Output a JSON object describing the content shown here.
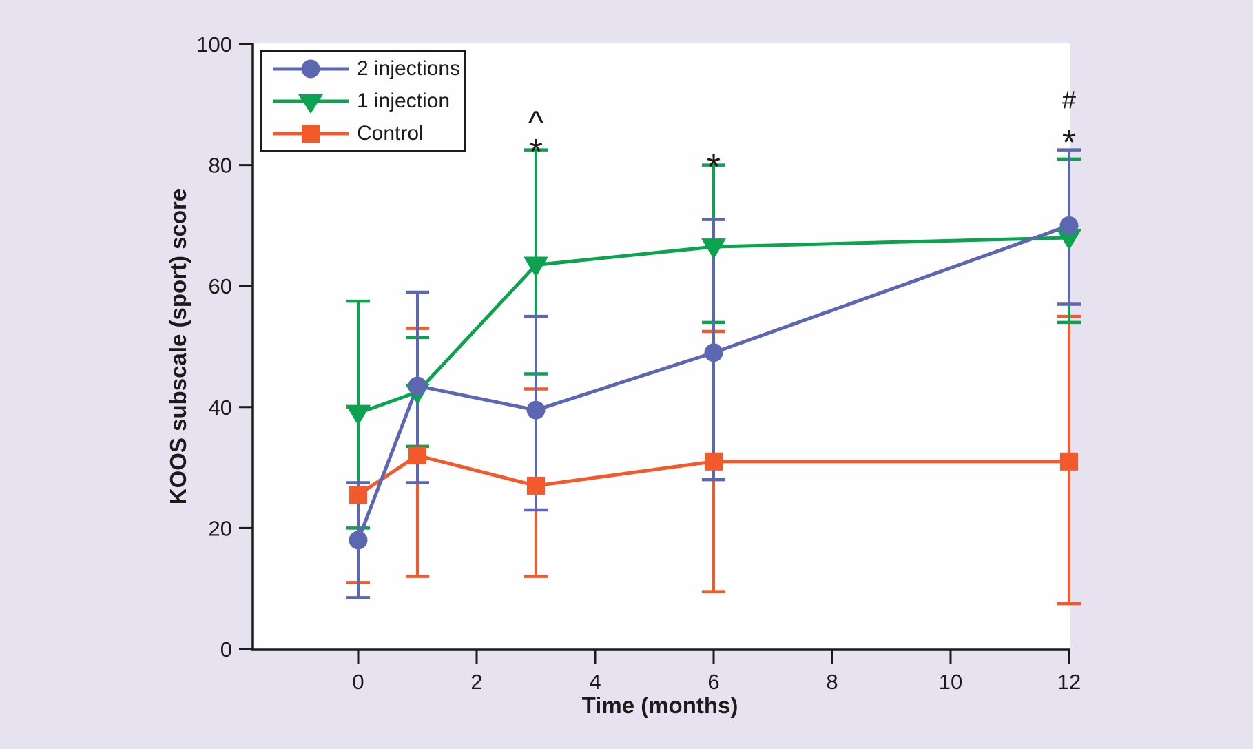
{
  "figure": {
    "background_color": "#e6e2ef",
    "plot_background": "#fffeff",
    "axis_color": "#1c1a1b",
    "text_color": "#1c1a1b"
  },
  "y_axis": {
    "title": "KOOS subscale (sport) score",
    "ticks": [
      0,
      20,
      40,
      60,
      80,
      100
    ],
    "min": 0,
    "max": 100
  },
  "x_axis": {
    "title": "Time (months)",
    "ticks": [
      0,
      2,
      4,
      6,
      8,
      10,
      12
    ],
    "min_months": -1.8,
    "max_months": 12
  },
  "legend": {
    "items": [
      {
        "label": "2 injections",
        "color": "#5b67b1",
        "marker": "circle"
      },
      {
        "label": "1 injection",
        "color": "#0ca24f",
        "marker": "triangle-down"
      },
      {
        "label": "Control",
        "color": "#f2592b",
        "marker": "square"
      }
    ]
  },
  "chart_data": {
    "type": "line",
    "title": "",
    "xlabel": "Time (months)",
    "ylabel": "KOOS subscale (sport) score",
    "ylim": [
      0,
      100
    ],
    "x_months": [
      0,
      1,
      3,
      6,
      12
    ],
    "series": [
      {
        "name": "2 injections",
        "color": "#5b67b1",
        "marker": "circle",
        "values": [
          18,
          43.5,
          39.5,
          49,
          70
        ],
        "err_upper": [
          27.5,
          59,
          55,
          71,
          82.5
        ],
        "err_lower": [
          8.5,
          27.5,
          23,
          28,
          57
        ]
      },
      {
        "name": "1 injection",
        "color": "#0ca24f",
        "marker": "triangle-down",
        "values": [
          39,
          42.5,
          63.5,
          66.5,
          68
        ],
        "err_upper": [
          57.5,
          51.5,
          82.5,
          80,
          81
        ],
        "err_lower": [
          20,
          33.5,
          45.5,
          54,
          54
        ]
      },
      {
        "name": "Control",
        "color": "#f2592b",
        "marker": "square",
        "values": [
          25.5,
          32,
          27,
          31,
          31
        ],
        "err_upper": [
          40,
          53,
          43,
          52.5,
          55
        ],
        "err_lower": [
          11,
          12,
          12,
          9.5,
          7.5
        ]
      }
    ],
    "annotations": [
      {
        "text": "^",
        "month": 3,
        "value": 88.5
      },
      {
        "text": "*",
        "month": 3,
        "value": 83.5
      },
      {
        "text": "*",
        "month": 6,
        "value": 81
      },
      {
        "text": "#",
        "month": 12,
        "value": 91
      },
      {
        "text": "*",
        "month": 12,
        "value": 85
      }
    ],
    "legend_position": "upper-left"
  }
}
